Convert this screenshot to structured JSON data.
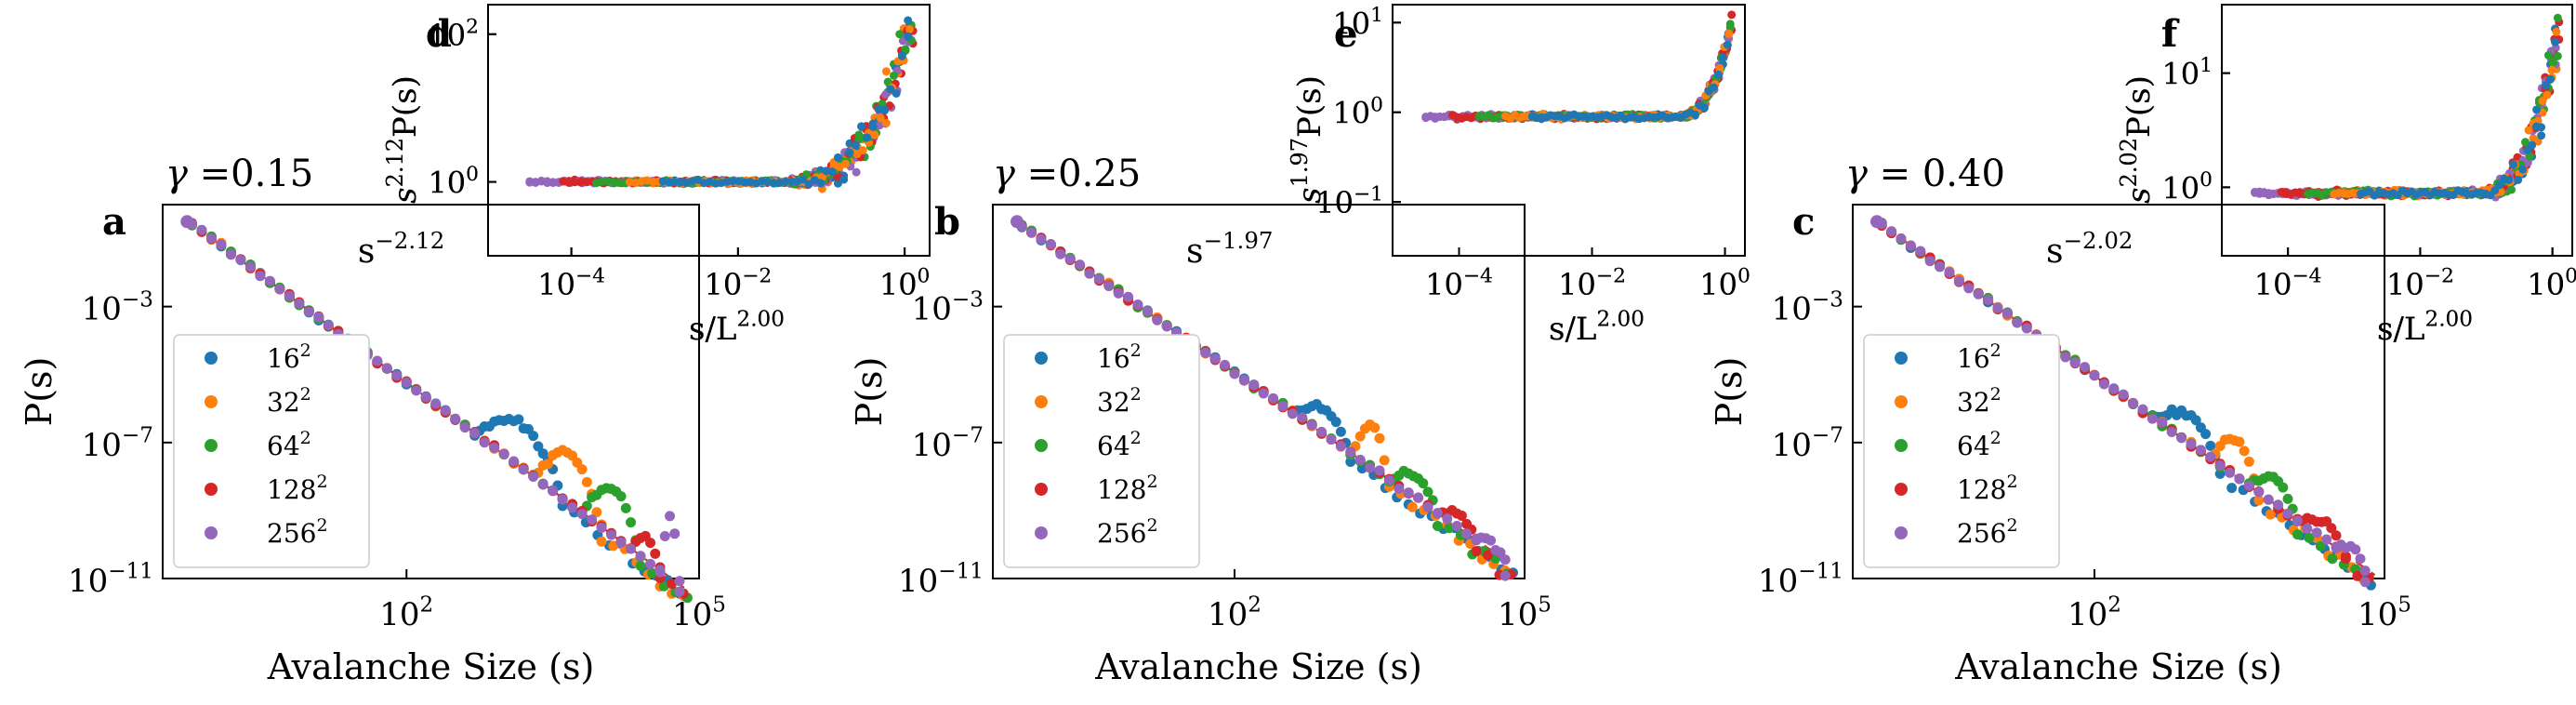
{
  "colors": {
    "16": "#1f77b4",
    "32": "#ff7f0e",
    "64": "#2ca02c",
    "128": "#d62728",
    "256": "#9467bd",
    "fit": "#d62728"
  },
  "legend_entries": [
    {
      "base": "16",
      "exp": "2",
      "color": "#1f77b4"
    },
    {
      "base": "32",
      "exp": "2",
      "color": "#ff7f0e"
    },
    {
      "base": "64",
      "exp": "2",
      "color": "#2ca02c"
    },
    {
      "base": "128",
      "exp": "2",
      "color": "#d62728"
    },
    {
      "base": "256",
      "exp": "2",
      "color": "#9467bd"
    }
  ],
  "chart_data": [
    {
      "panel": "a",
      "type": "scatter",
      "scale": "log-log",
      "title_symbol": "γ",
      "title_value": "=0.15",
      "xlabel": "Avalanche Size (s)",
      "ylabel": "P(s)",
      "x_decades": [
        -0.5,
        5
      ],
      "y_decades": [
        -11,
        0
      ],
      "x_ticks": [
        {
          "base": "10",
          "exp": "2",
          "decade": 2
        },
        {
          "base": "10",
          "exp": "5",
          "decade": 5
        }
      ],
      "y_ticks": [
        {
          "base": "10",
          "exp": "−3",
          "decade": -3
        },
        {
          "base": "10",
          "exp": "−7",
          "decade": -7
        },
        {
          "base": "10",
          "exp": "−11",
          "decade": -11
        }
      ],
      "fit_label": "s",
      "fit_exp": "−2.12",
      "fit_slope": -2.12,
      "fit_from": [
        0.0,
        -1.0
      ],
      "fit_to_x": 4.9,
      "series": [
        {
          "name": "16²",
          "key": "16",
          "bump": [
            2.7,
            3.6,
            1.6
          ],
          "tail": [
            3.6,
            4.9,
            -2.12
          ]
        },
        {
          "name": "32²",
          "key": "32",
          "bump": [
            3.3,
            4.0,
            1.8
          ],
          "tail": [
            4.0,
            4.9,
            -2.12
          ]
        },
        {
          "name": "64²",
          "key": "64",
          "bump": [
            3.8,
            4.4,
            1.7
          ],
          "tail": [
            4.4,
            4.9,
            -2.12
          ]
        },
        {
          "name": "128²",
          "key": "128",
          "bump": [
            4.3,
            4.6,
            0.8
          ],
          "tail": [
            4.6,
            4.9,
            -2.12
          ]
        },
        {
          "name": "256²",
          "key": "256",
          "bump": [
            4.6,
            4.8,
            2.2
          ],
          "tail": [
            4.8,
            4.9,
            -2.12
          ]
        }
      ]
    },
    {
      "panel": "b",
      "type": "scatter",
      "scale": "log-log",
      "title_symbol": "γ",
      "title_value": "=0.25",
      "xlabel": "Avalanche Size (s)",
      "ylabel": "P(s)",
      "x_decades": [
        -0.5,
        5
      ],
      "y_decades": [
        -11,
        0
      ],
      "x_ticks": [
        {
          "base": "10",
          "exp": "2",
          "decade": 2
        },
        {
          "base": "10",
          "exp": "5",
          "decade": 5
        }
      ],
      "y_ticks": [
        {
          "base": "10",
          "exp": "−3",
          "decade": -3
        },
        {
          "base": "10",
          "exp": "−7",
          "decade": -7
        },
        {
          "base": "10",
          "exp": "−11",
          "decade": -11
        }
      ],
      "fit_label": "s",
      "fit_exp": "−1.97",
      "fit_slope": -1.97,
      "fit_from": [
        0.0,
        -1.0
      ],
      "fit_to_x": 4.9,
      "series": [
        {
          "name": "16²",
          "key": "16",
          "bump": [
            2.6,
            3.2,
            0.9
          ],
          "tail": [
            3.2,
            4.9,
            -1.97
          ]
        },
        {
          "name": "32²",
          "key": "32",
          "bump": [
            3.2,
            3.6,
            1.5
          ],
          "tail": [
            3.6,
            4.9,
            -1.97
          ]
        },
        {
          "name": "64²",
          "key": "64",
          "bump": [
            3.6,
            4.1,
            0.8
          ],
          "tail": [
            4.1,
            4.9,
            -1.97
          ]
        },
        {
          "name": "128²",
          "key": "128",
          "bump": [
            4.1,
            4.5,
            0.5
          ],
          "tail": [
            4.5,
            4.9,
            -1.97
          ]
        },
        {
          "name": "256²",
          "key": "256",
          "bump": [
            4.5,
            4.8,
            0.3
          ],
          "tail": [
            4.8,
            4.9,
            -1.97
          ]
        }
      ]
    },
    {
      "panel": "c",
      "type": "scatter",
      "scale": "log-log",
      "title_symbol": "γ",
      "title_value": "= 0.40",
      "xlabel": "Avalanche Size (s)",
      "ylabel": "P(s)",
      "x_decades": [
        -0.5,
        5
      ],
      "y_decades": [
        -11,
        0
      ],
      "x_ticks": [
        {
          "base": "10",
          "exp": "2",
          "decade": 2
        },
        {
          "base": "10",
          "exp": "5",
          "decade": 5
        }
      ],
      "y_ticks": [
        {
          "base": "10",
          "exp": "−3",
          "decade": -3
        },
        {
          "base": "10",
          "exp": "−7",
          "decade": -7
        },
        {
          "base": "10",
          "exp": "−11",
          "decade": -11
        }
      ],
      "fit_label": "s",
      "fit_exp": "−2.02",
      "fit_slope": -2.02,
      "fit_from": [
        0.0,
        -1.0
      ],
      "fit_to_x": 4.9,
      "series": [
        {
          "name": "16²",
          "key": "16",
          "bump": [
            2.6,
            3.3,
            1.0
          ],
          "tail": [
            3.3,
            4.9,
            -2.02
          ]
        },
        {
          "name": "32²",
          "key": "32",
          "bump": [
            3.2,
            3.7,
            1.3
          ],
          "tail": [
            3.7,
            4.9,
            -2.02
          ]
        },
        {
          "name": "64²",
          "key": "64",
          "bump": [
            3.6,
            4.1,
            0.9
          ],
          "tail": [
            4.1,
            4.9,
            -2.02
          ]
        },
        {
          "name": "128²",
          "key": "128",
          "bump": [
            4.1,
            4.6,
            0.6
          ],
          "tail": [
            4.6,
            4.9,
            -2.02
          ]
        },
        {
          "name": "256²",
          "key": "256",
          "bump": [
            4.5,
            4.8,
            0.4
          ],
          "tail": [
            4.8,
            4.9,
            -2.02
          ]
        }
      ]
    },
    {
      "panel": "d",
      "type": "scatter",
      "scale": "log-log",
      "inset": true,
      "ylabel_prefix": "s",
      "ylabel_exp": "2.12",
      "ylabel_suffix": "P(s)",
      "xlabel_prefix": "s/L",
      "xlabel_exp": "2.00",
      "x_decades": [
        -5,
        0.3
      ],
      "y_decades": [
        -1,
        2.4
      ],
      "x_ticks": [
        {
          "base": "10",
          "exp": "−4",
          "decade": -4
        },
        {
          "base": "10",
          "exp": "−2",
          "decade": -2
        },
        {
          "base": "10",
          "exp": "0",
          "decade": 0
        }
      ],
      "y_ticks": [
        {
          "base": "10",
          "exp": "0",
          "decade": 0
        },
        {
          "base": "10",
          "exp": "2",
          "decade": 2
        }
      ],
      "collapse": {
        "plateau": 0.0,
        "rise_start": -1.5,
        "peak": 2.2,
        "spread": 0.5
      }
    },
    {
      "panel": "e",
      "type": "scatter",
      "scale": "log-log",
      "inset": true,
      "ylabel_prefix": "s",
      "ylabel_exp": "1.97",
      "ylabel_suffix": "P(s)",
      "xlabel_prefix": "s/L",
      "xlabel_exp": "2.00",
      "x_decades": [
        -5,
        0.3
      ],
      "y_decades": [
        -1.6,
        1.2
      ],
      "x_ticks": [
        {
          "base": "10",
          "exp": "−4",
          "decade": -4
        },
        {
          "base": "10",
          "exp": "−2",
          "decade": -2
        },
        {
          "base": "10",
          "exp": "0",
          "decade": 0
        }
      ],
      "y_ticks": [
        {
          "base": "10",
          "exp": "−1",
          "decade": -1
        },
        {
          "base": "10",
          "exp": "0",
          "decade": 0
        },
        {
          "base": "10",
          "exp": "1",
          "decade": 1
        }
      ],
      "collapse": {
        "plateau": -0.05,
        "rise_start": -0.8,
        "peak": 1.0,
        "spread": 0.15
      }
    },
    {
      "panel": "f",
      "type": "scatter",
      "scale": "log-log",
      "inset": true,
      "ylabel_prefix": "s",
      "ylabel_exp": "2.02",
      "ylabel_suffix": "P(s)",
      "xlabel_prefix": "s/L",
      "xlabel_exp": "2.00",
      "x_decades": [
        -5,
        0.3
      ],
      "y_decades": [
        -0.6,
        1.6
      ],
      "x_ticks": [
        {
          "base": "10",
          "exp": "−4",
          "decade": -4
        },
        {
          "base": "10",
          "exp": "−2",
          "decade": -2
        },
        {
          "base": "10",
          "exp": "0",
          "decade": 0
        }
      ],
      "y_ticks": [
        {
          "base": "10",
          "exp": "0",
          "decade": 0
        },
        {
          "base": "10",
          "exp": "1",
          "decade": 1
        }
      ],
      "collapse": {
        "plateau": -0.05,
        "rise_start": -1.2,
        "peak": 1.4,
        "spread": 0.3
      }
    }
  ]
}
